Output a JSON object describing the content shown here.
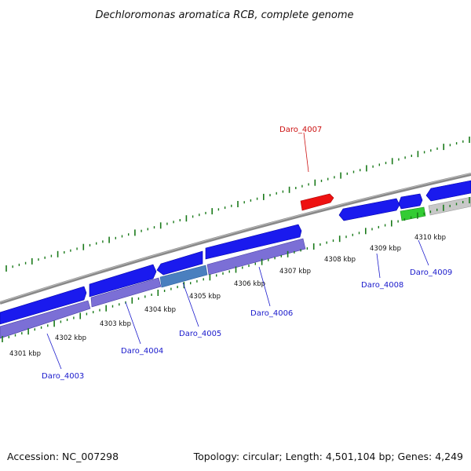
{
  "title": "Dechloromonas aromatica RCB, complete genome",
  "footer": {
    "accession": "Accession: NC_007298",
    "summary": "Topology: circular; Length: 4,501,104 bp; Genes: 4,249"
  },
  "colors": {
    "forward_strand_gene": "#1a1aee",
    "reverse_strand_gene": "#1a1aee",
    "rna_band": "#7b6fd6",
    "highlighted_gene": "#ee1111",
    "green_gene": "#33cc33",
    "gray_gene": "#c8c8c8",
    "steelblue_band": "#4a7fbf",
    "genome_line": "#888888",
    "tick_marks": "#1a7a1a",
    "label_blue": "#1a1acc",
    "label_red": "#cc1111"
  },
  "ticks": [
    {
      "label": "4301 kbp"
    },
    {
      "label": "4302 kbp"
    },
    {
      "label": "4303 kbp"
    },
    {
      "label": "4304 kbp"
    },
    {
      "label": "4305 kbp"
    },
    {
      "label": "4306 kbp"
    },
    {
      "label": "4307 kbp"
    },
    {
      "label": "4308 kbp"
    },
    {
      "label": "4309 kbp"
    },
    {
      "label": "4310 kbp"
    }
  ],
  "genes": [
    {
      "name": "Daro_4003"
    },
    {
      "name": "Daro_4004"
    },
    {
      "name": "Daro_4005"
    },
    {
      "name": "Daro_4006"
    },
    {
      "name": "Daro_4007"
    },
    {
      "name": "Daro_4008"
    },
    {
      "name": "Daro_4009"
    }
  ]
}
